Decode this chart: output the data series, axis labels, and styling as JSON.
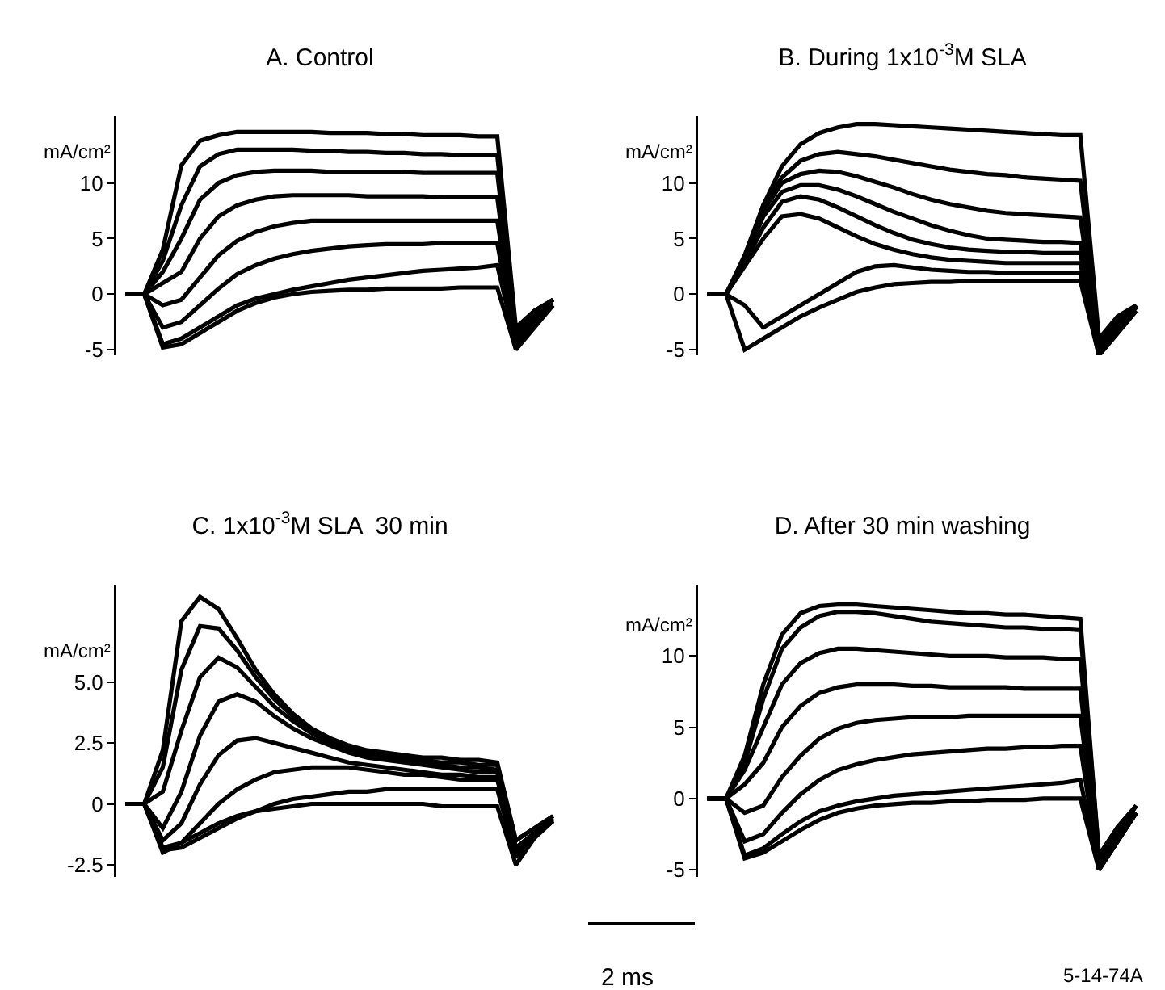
{
  "chart_data": [
    {
      "type": "line",
      "title": "A. Control",
      "ylabel": "mA/cm²",
      "categories": [
        null,
        null,
        null,
        null,
        null,
        null,
        null,
        null,
        null,
        null,
        null,
        null,
        null,
        null,
        null,
        null,
        null,
        null,
        null,
        null,
        null,
        null,
        null,
        null
      ],
      "ylim": [
        -5.5,
        16
      ],
      "yticks": [
        -5,
        0,
        5,
        10
      ],
      "marker": "none",
      "line_style": "solid",
      "tick_labels": "y",
      "series": [
        {
          "color": "#000000",
          "values": [
            0,
            0,
            4,
            11.6,
            13.8,
            14.3,
            14.6,
            14.6,
            14.6,
            14.6,
            14.6,
            14.5,
            14.5,
            14.5,
            14.4,
            14.4,
            14.3,
            14.3,
            14.3,
            14.2,
            14.2,
            -3,
            -1.5,
            -0.5
          ]
        },
        {
          "color": "#000000",
          "values": [
            0,
            0,
            3,
            8,
            11.5,
            12.6,
            13,
            13,
            13,
            13,
            12.9,
            12.9,
            12.8,
            12.8,
            12.7,
            12.7,
            12.6,
            12.6,
            12.5,
            12.5,
            12.5,
            -3.5,
            -1.5,
            -0.5
          ]
        },
        {
          "color": "#000000",
          "values": [
            0,
            0,
            2,
            5,
            8.5,
            10,
            10.7,
            11,
            11.1,
            11.1,
            11.1,
            11,
            11,
            11,
            11,
            11,
            10.9,
            10.9,
            10.9,
            10.9,
            10.9,
            -3.5,
            -2,
            -0.5
          ]
        },
        {
          "color": "#000000",
          "values": [
            0,
            0,
            1,
            2,
            5,
            7,
            8,
            8.5,
            8.8,
            8.9,
            8.9,
            8.9,
            8.9,
            8.8,
            8.8,
            8.8,
            8.8,
            8.7,
            8.7,
            8.7,
            8.7,
            -4,
            -2,
            -0.5
          ]
        },
        {
          "color": "#000000",
          "values": [
            0,
            0,
            -1,
            -0.5,
            1.5,
            3.5,
            4.8,
            5.6,
            6.1,
            6.4,
            6.6,
            6.6,
            6.6,
            6.6,
            6.6,
            6.6,
            6.6,
            6.6,
            6.6,
            6.6,
            6.6,
            -4,
            -2,
            -0.5
          ]
        },
        {
          "color": "#000000",
          "values": [
            0,
            0,
            -3,
            -2.5,
            -1,
            0.5,
            1.8,
            2.6,
            3.2,
            3.6,
            3.9,
            4.1,
            4.3,
            4.4,
            4.5,
            4.5,
            4.5,
            4.6,
            4.6,
            4.6,
            4.6,
            -4.5,
            -2.5,
            -1
          ]
        },
        {
          "color": "#000000",
          "values": [
            0,
            0,
            -4.5,
            -4,
            -3,
            -2,
            -1,
            -0.4,
            0,
            0.4,
            0.7,
            1,
            1.3,
            1.5,
            1.7,
            1.9,
            2.1,
            2.2,
            2.3,
            2.4,
            2.6,
            -4.5,
            -2.5,
            -1
          ]
        },
        {
          "color": "#000000",
          "values": [
            0,
            0,
            -4.8,
            -4.5,
            -3.5,
            -2.5,
            -1.5,
            -0.8,
            -0.3,
            0,
            0.2,
            0.3,
            0.4,
            0.4,
            0.5,
            0.5,
            0.5,
            0.5,
            0.6,
            0.6,
            0.6,
            -5,
            -3,
            -1
          ]
        }
      ]
    },
    {
      "type": "line",
      "title": "B. During 1x10$^{-3}$M SLA",
      "ylabel": "mA/cm²",
      "categories": [
        null,
        null,
        null,
        null,
        null,
        null,
        null,
        null,
        null,
        null,
        null,
        null,
        null,
        null,
        null,
        null,
        null,
        null,
        null,
        null,
        null,
        null,
        null,
        null
      ],
      "ylim": [
        -5.5,
        16
      ],
      "yticks": [
        -5,
        0,
        5,
        10
      ],
      "marker": "none",
      "line_style": "solid",
      "tick_labels": "y",
      "series": [
        {
          "color": "#000000",
          "values": [
            0,
            0,
            3.5,
            8,
            11.5,
            13.5,
            14.5,
            15,
            15.3,
            15.3,
            15.2,
            15.1,
            15,
            14.9,
            14.8,
            14.7,
            14.6,
            14.5,
            14.4,
            14.3,
            14.3,
            -4,
            -2,
            -1
          ]
        },
        {
          "color": "#000000",
          "values": [
            0,
            0,
            3.2,
            8,
            10.5,
            12,
            12.6,
            12.8,
            12.6,
            12.4,
            12.1,
            11.8,
            11.5,
            11.2,
            11,
            10.8,
            10.7,
            10.5,
            10.4,
            10.3,
            10.2,
            -4.5,
            -2.5,
            -1
          ]
        },
        {
          "color": "#000000",
          "values": [
            0,
            0,
            3,
            7.5,
            10,
            10.8,
            11.1,
            11,
            10.6,
            10.1,
            9.6,
            9,
            8.5,
            8.1,
            7.8,
            7.5,
            7.3,
            7.2,
            7.1,
            7,
            6.9,
            -5,
            -2.5,
            -1
          ]
        },
        {
          "color": "#000000",
          "values": [
            0,
            0,
            3,
            7,
            9.2,
            9.8,
            9.8,
            9.4,
            8.8,
            8.1,
            7.4,
            6.8,
            6.2,
            5.7,
            5.3,
            5,
            4.9,
            4.8,
            4.7,
            4.7,
            4.6,
            -5,
            -3,
            -1
          ]
        },
        {
          "color": "#000000",
          "values": [
            0,
            0,
            2.8,
            6,
            8.3,
            8.8,
            8.5,
            7.8,
            7,
            6.2,
            5.5,
            4.9,
            4.5,
            4.2,
            4,
            3.9,
            3.8,
            3.8,
            3.7,
            3.7,
            3.7,
            -5.5,
            -3,
            -1
          ]
        },
        {
          "color": "#000000",
          "values": [
            0,
            0,
            2.5,
            5,
            7,
            7.2,
            6.8,
            6,
            5.2,
            4.5,
            4,
            3.6,
            3.3,
            3.1,
            3,
            2.9,
            2.8,
            2.8,
            2.8,
            2.8,
            2.8,
            -5.5,
            -3,
            -1.2
          ]
        },
        {
          "color": "#000000",
          "values": [
            0,
            0,
            -1,
            -3,
            -2,
            -1,
            0,
            1,
            2,
            2.5,
            2.6,
            2.4,
            2.2,
            2.1,
            2,
            2,
            1.9,
            1.9,
            1.9,
            1.9,
            1.9,
            -5.5,
            -3.5,
            -1.5
          ]
        },
        {
          "color": "#000000",
          "values": [
            0,
            0,
            -5,
            -4,
            -3,
            -2,
            -1.2,
            -0.5,
            0.2,
            0.6,
            0.9,
            1,
            1.1,
            1.1,
            1.2,
            1.2,
            1.2,
            1.2,
            1.2,
            1.2,
            1.2,
            -5.5,
            -3.5,
            -1.5
          ]
        }
      ]
    },
    {
      "type": "line",
      "title": "C. 1x10$^{-3}$M SLA  30 min",
      "ylabel": "mA/cm²",
      "categories": [
        null,
        null,
        null,
        null,
        null,
        null,
        null,
        null,
        null,
        null,
        null,
        null,
        null,
        null,
        null,
        null,
        null,
        null,
        null,
        null,
        null,
        null,
        null,
        null
      ],
      "ylim": [
        -3,
        9
      ],
      "yticks": [
        {
          "value": -2.5,
          "label": "-2.5"
        },
        {
          "value": 0,
          "label": "0"
        },
        {
          "value": 2.5,
          "label": "2.5"
        },
        {
          "value": 5,
          "label": "5.0"
        }
      ],
      "marker": "none",
      "line_style": "solid",
      "tick_labels": "y",
      "series": [
        {
          "color": "#000000",
          "values": [
            0,
            0,
            2.2,
            7.5,
            8.5,
            8,
            6.8,
            5.5,
            4.5,
            3.7,
            3.1,
            2.7,
            2.4,
            2.2,
            2.1,
            2,
            1.9,
            1.9,
            1.8,
            1.8,
            1.7,
            -1.5,
            -1,
            -0.5
          ]
        },
        {
          "color": "#000000",
          "values": [
            0,
            0,
            1.5,
            5.5,
            7.3,
            7.2,
            6.3,
            5.2,
            4.3,
            3.6,
            3,
            2.6,
            2.3,
            2.1,
            2,
            1.9,
            1.8,
            1.7,
            1.7,
            1.6,
            1.6,
            -1.5,
            -1,
            -0.5
          ]
        },
        {
          "color": "#000000",
          "values": [
            0,
            0,
            0.5,
            3,
            5.2,
            6,
            5.6,
            4.8,
            4,
            3.4,
            2.9,
            2.5,
            2.2,
            2,
            1.9,
            1.8,
            1.7,
            1.6,
            1.5,
            1.5,
            1.4,
            -1.8,
            -1.2,
            -0.6
          ]
        },
        {
          "color": "#000000",
          "values": [
            0,
            0,
            -1,
            0.5,
            2.8,
            4.2,
            4.5,
            4.2,
            3.6,
            3.1,
            2.7,
            2.4,
            2.1,
            1.9,
            1.8,
            1.7,
            1.6,
            1.5,
            1.4,
            1.3,
            1.3,
            -1.8,
            -1.2,
            -0.6
          ]
        },
        {
          "color": "#000000",
          "values": [
            0,
            0,
            -1.5,
            -0.8,
            0.8,
            2,
            2.6,
            2.7,
            2.5,
            2.3,
            2.1,
            1.9,
            1.7,
            1.6,
            1.5,
            1.4,
            1.3,
            1.2,
            1.2,
            1.1,
            1.1,
            -2,
            -1.2,
            -0.6
          ]
        },
        {
          "color": "#000000",
          "values": [
            0,
            0,
            -1.8,
            -1.6,
            -0.8,
            0,
            0.6,
            1,
            1.3,
            1.4,
            1.5,
            1.5,
            1.5,
            1.4,
            1.3,
            1.2,
            1.2,
            1.1,
            1,
            1,
            1,
            -2,
            -1.3,
            -0.7
          ]
        },
        {
          "color": "#000000",
          "values": [
            0,
            0,
            -1.9,
            -1.8,
            -1.4,
            -1,
            -0.6,
            -0.3,
            0,
            0.2,
            0.3,
            0.4,
            0.5,
            0.5,
            0.6,
            0.6,
            0.6,
            0.6,
            0.6,
            0.6,
            0.6,
            -2.2,
            -1.3,
            -0.7
          ]
        },
        {
          "color": "#000000",
          "values": [
            0,
            0,
            -2,
            -1.6,
            -1.2,
            -0.8,
            -0.5,
            -0.3,
            -0.2,
            -0.1,
            0,
            0,
            0,
            0,
            0,
            0,
            0,
            -0.1,
            -0.1,
            -0.1,
            -0.1,
            -2.5,
            -1.4,
            -0.7
          ]
        }
      ]
    },
    {
      "type": "line",
      "title": "D. After 30 min washing",
      "ylabel": "mA/cm²",
      "categories": [
        null,
        null,
        null,
        null,
        null,
        null,
        null,
        null,
        null,
        null,
        null,
        null,
        null,
        null,
        null,
        null,
        null,
        null,
        null,
        null,
        null,
        null,
        null,
        null
      ],
      "ylim": [
        -5.5,
        15
      ],
      "yticks": [
        -5,
        0,
        5,
        10
      ],
      "marker": "none",
      "line_style": "solid",
      "tick_labels": "y",
      "annotations": [
        "2 ms",
        "5-14-74A"
      ],
      "series": [
        {
          "color": "#000000",
          "values": [
            0,
            0,
            3,
            8,
            11.5,
            13,
            13.5,
            13.6,
            13.6,
            13.5,
            13.4,
            13.3,
            13.2,
            13.1,
            13,
            13,
            12.9,
            12.9,
            12.8,
            12.7,
            12.6,
            -4,
            -2,
            -0.5
          ]
        },
        {
          "color": "#000000",
          "values": [
            0,
            0,
            2.5,
            7,
            10.5,
            12,
            12.8,
            13.1,
            13.1,
            13,
            12.8,
            12.6,
            12.4,
            12.3,
            12.2,
            12.1,
            12,
            12,
            11.9,
            11.9,
            11.8,
            -4,
            -2,
            -0.5
          ]
        },
        {
          "color": "#000000",
          "values": [
            0,
            0,
            2,
            5,
            8,
            9.5,
            10.2,
            10.5,
            10.5,
            10.4,
            10.3,
            10.2,
            10.1,
            10,
            10,
            10,
            9.9,
            9.9,
            9.9,
            9.8,
            9.8,
            -4.5,
            -2.5,
            -0.5
          ]
        },
        {
          "color": "#000000",
          "values": [
            0,
            0,
            1,
            2.5,
            5,
            6.5,
            7.4,
            7.8,
            8,
            8,
            8,
            7.9,
            7.9,
            7.8,
            7.8,
            7.8,
            7.8,
            7.7,
            7.7,
            7.7,
            7.7,
            -4.5,
            -2.5,
            -1
          ]
        },
        {
          "color": "#000000",
          "values": [
            0,
            0,
            -1,
            -0.5,
            1.5,
            3,
            4.2,
            4.9,
            5.3,
            5.5,
            5.6,
            5.7,
            5.7,
            5.7,
            5.8,
            5.8,
            5.8,
            5.8,
            5.8,
            5.8,
            5.8,
            -4.5,
            -2.5,
            -1
          ]
        },
        {
          "color": "#000000",
          "values": [
            0,
            0,
            -3,
            -2.5,
            -1,
            0.3,
            1.3,
            2,
            2.4,
            2.7,
            2.9,
            3.1,
            3.2,
            3.3,
            3.4,
            3.5,
            3.5,
            3.6,
            3.6,
            3.7,
            3.7,
            -5,
            -3,
            -1
          ]
        },
        {
          "color": "#000000",
          "values": [
            0,
            0,
            -4,
            -3.5,
            -2.5,
            -1.6,
            -0.9,
            -0.5,
            -0.2,
            0,
            0.2,
            0.3,
            0.4,
            0.5,
            0.6,
            0.7,
            0.8,
            0.9,
            1,
            1.1,
            1.3,
            -5,
            -3,
            -1
          ]
        },
        {
          "color": "#000000",
          "values": [
            0,
            0,
            -4.2,
            -3.8,
            -3,
            -2.2,
            -1.5,
            -1,
            -0.7,
            -0.5,
            -0.4,
            -0.3,
            -0.3,
            -0.2,
            -0.2,
            -0.1,
            -0.1,
            -0.1,
            0,
            0,
            0,
            -5,
            -3,
            -1
          ]
        }
      ]
    }
  ]
}
